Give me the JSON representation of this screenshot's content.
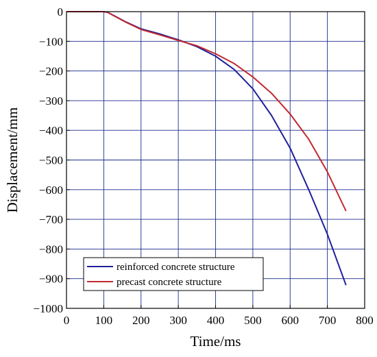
{
  "chart_data": {
    "type": "line",
    "xlabel": "Time/ms",
    "ylabel": "Displacement/mm",
    "xlim": [
      0,
      800
    ],
    "ylim": [
      -1000,
      0
    ],
    "xticks": [
      0,
      100,
      200,
      300,
      400,
      500,
      600,
      700,
      800
    ],
    "yticks": [
      0,
      -100,
      -200,
      -300,
      -400,
      -500,
      -600,
      -700,
      -800,
      -900,
      -1000
    ],
    "xtick_labels": [
      "0",
      "100",
      "200",
      "300",
      "400",
      "500",
      "600",
      "700",
      "800"
    ],
    "ytick_labels": [
      "0",
      "−100",
      "−200",
      "−300",
      "−400",
      "−500",
      "−600",
      "−700",
      "−800",
      "−900",
      "−1000"
    ],
    "grid": true,
    "legend_position": "bottom-left",
    "series": [
      {
        "name": "reinforced concrete structure",
        "color": "#1f1f9a",
        "x": [
          0,
          100,
          110,
          130,
          160,
          200,
          250,
          300,
          350,
          400,
          450,
          500,
          550,
          600,
          650,
          700,
          750
        ],
        "y": [
          0,
          0,
          -2,
          -15,
          -35,
          -58,
          -75,
          -95,
          -118,
          -150,
          -195,
          -260,
          -350,
          -460,
          -600,
          -750,
          -922
        ]
      },
      {
        "name": "precast concrete structure",
        "color": "#c0282e",
        "x": [
          0,
          100,
          110,
          130,
          160,
          200,
          250,
          300,
          350,
          400,
          450,
          500,
          550,
          600,
          650,
          700,
          750
        ],
        "y": [
          0,
          0,
          -2,
          -16,
          -36,
          -60,
          -78,
          -97,
          -115,
          -142,
          -175,
          -220,
          -275,
          -345,
          -430,
          -540,
          -672
        ]
      }
    ]
  }
}
